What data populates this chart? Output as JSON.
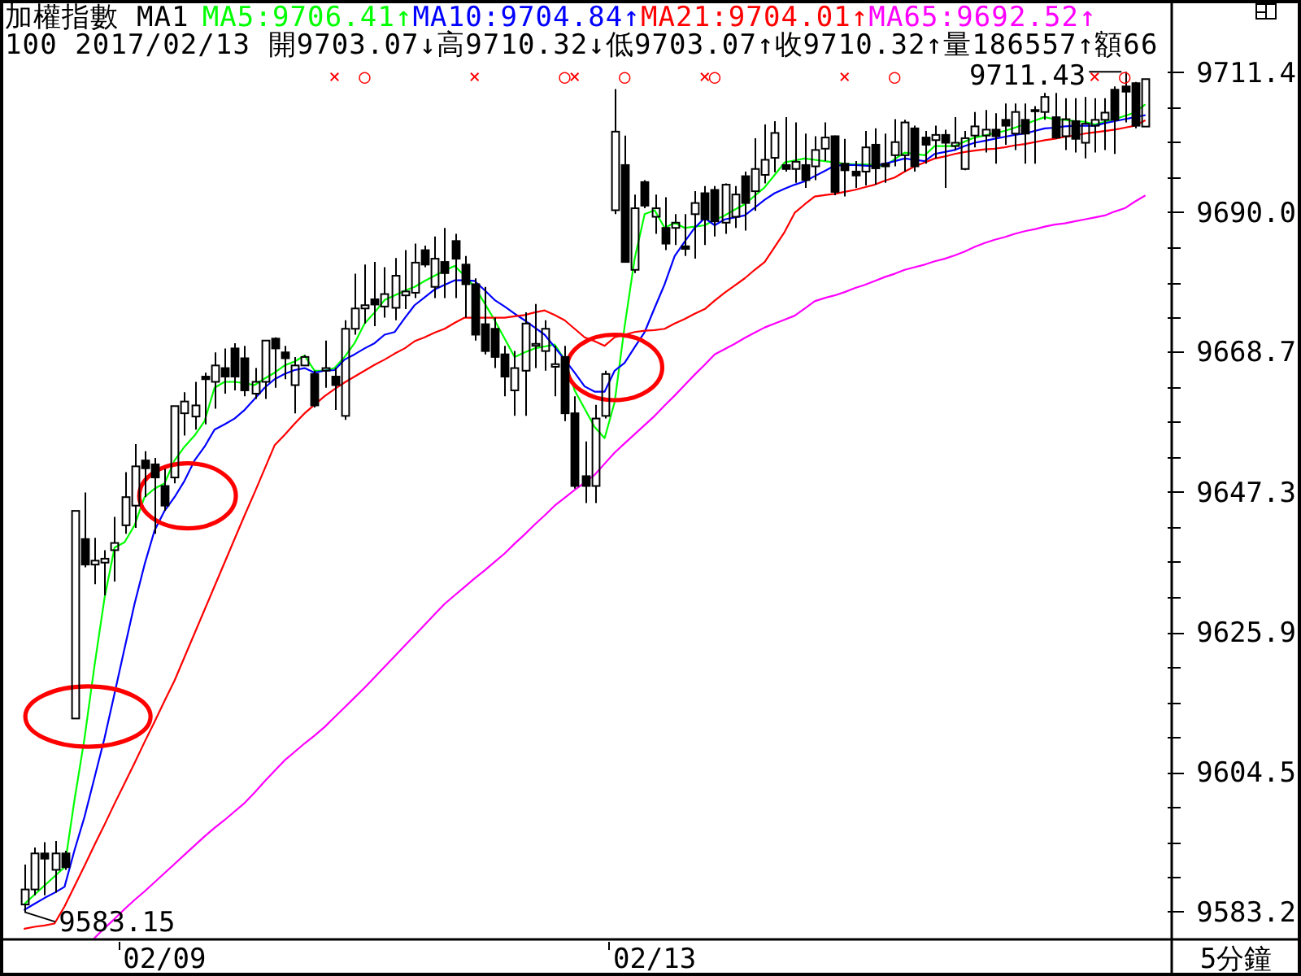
{
  "chart_data": {
    "type": "candlestick",
    "title": "加權指數 MA1",
    "subtitle": "100 2017/02/13 開9703.07↓高9710.32↓低9703.07↑收9710.32↑量186557↑額66",
    "xlabel": "5分鐘",
    "categories": [
      null,
      null,
      null,
      null,
      null,
      null,
      null,
      null,
      null,
      null,
      null,
      null,
      null,
      null,
      "02/09",
      null,
      null,
      null,
      null,
      null,
      null,
      null,
      null,
      null,
      null,
      null,
      null,
      null,
      null,
      null,
      null,
      null,
      null,
      null,
      null,
      null,
      null,
      null,
      null,
      null,
      null,
      null,
      null,
      null,
      null,
      null,
      null,
      null,
      null,
      null,
      null,
      null,
      null,
      null,
      null,
      null,
      null,
      null,
      null,
      null,
      null,
      null,
      null,
      "02/13",
      null,
      null,
      null,
      null,
      null,
      null,
      null,
      null,
      null,
      null,
      null,
      null,
      null,
      null,
      null,
      null,
      null,
      null,
      null,
      null,
      null,
      null,
      null,
      null,
      null,
      null,
      null,
      null,
      null,
      null,
      null,
      null,
      null,
      null,
      null,
      null,
      null,
      null,
      null,
      null,
      null,
      null,
      null,
      null,
      null,
      null,
      null,
      null,
      null
    ],
    "ohlc": [
      [
        9584.3,
        9590.4,
        9583.15,
        9586.6
      ],
      [
        9586.6,
        9593.0,
        9585.7,
        9592.1
      ],
      [
        9592.1,
        9593.8,
        9585.7,
        9591.3
      ],
      [
        9589.6,
        9594.0,
        9586.1,
        9592.1
      ],
      [
        9592.1,
        9592.5,
        9589.6,
        9590.0
      ],
      [
        9612.7,
        9644.4,
        9612.7,
        9644.4
      ],
      [
        9640.1,
        9647.2,
        9635.8,
        9636.2
      ],
      [
        9636.2,
        9640.3,
        9633.2,
        9636.8
      ],
      [
        9636.5,
        9638.4,
        9631.5,
        9637.1
      ],
      [
        9638.4,
        9643.5,
        9633.6,
        9639.5
      ],
      [
        9642.2,
        9650.3,
        9640.9,
        9646.5
      ],
      [
        9645.2,
        9654.6,
        9641.8,
        9651.2
      ],
      [
        9652.1,
        9653.5,
        9646.5,
        9650.9
      ],
      [
        9651.5,
        9652.5,
        9640.9,
        9649.5
      ],
      [
        9648.2,
        9650.8,
        9644.4,
        9645.2
      ],
      [
        9649.5,
        9660.4,
        9648.6,
        9660.4
      ],
      [
        9659.3,
        9662.5,
        9655.9,
        9661.1
      ],
      [
        9658.8,
        9664.1,
        9656.8,
        9660.5
      ],
      [
        9664.9,
        9665.5,
        9657.6,
        9664.5
      ],
      [
        9664.1,
        9668.6,
        9660.0,
        9666.6
      ],
      [
        9666.2,
        9669.2,
        9662.3,
        9664.9
      ],
      [
        9669.2,
        9670.0,
        9662.8,
        9664.9
      ],
      [
        9667.7,
        9669.6,
        9661.9,
        9662.8
      ],
      [
        9662.3,
        9666.2,
        9661.5,
        9664.1
      ],
      [
        9664.1,
        9670.4,
        9661.5,
        9670.4
      ],
      [
        9670.7,
        9670.9,
        9663.2,
        9669.2
      ],
      [
        9668.6,
        9669.6,
        9664.5,
        9667.7
      ],
      [
        9663.6,
        9667.9,
        9659.3,
        9666.6
      ],
      [
        9666.6,
        9668.2,
        9666.6,
        9667.9
      ],
      [
        9665.3,
        9665.8,
        9660.2,
        9660.5
      ],
      [
        9665.8,
        9670.4,
        9663.2,
        9666.2
      ],
      [
        9664.9,
        9666.2,
        9659.8,
        9663.6
      ],
      [
        9658.9,
        9673.5,
        9658.3,
        9672.2
      ],
      [
        9672.2,
        9680.6,
        9671.3,
        9675.3
      ],
      [
        9675.3,
        9682.0,
        9673.0,
        9675.8
      ],
      [
        9676.7,
        9682.4,
        9672.6,
        9675.9
      ],
      [
        9675.6,
        9681.6,
        9673.9,
        9677.5
      ],
      [
        9675.4,
        9683.0,
        9673.5,
        9680.3
      ],
      [
        9677.3,
        9684.2,
        9675.2,
        9677.9
      ],
      [
        9677.7,
        9685.2,
        9676.9,
        9682.3
      ],
      [
        9684.2,
        9684.9,
        9681.6,
        9682.0
      ],
      [
        9678.6,
        9686.3,
        9676.9,
        9682.9
      ],
      [
        9682.4,
        9687.6,
        9676.9,
        9680.7
      ],
      [
        9685.6,
        9686.7,
        9676.9,
        9682.9
      ],
      [
        9682.0,
        9683.3,
        9673.9,
        9679.0
      ],
      [
        9679.0,
        9679.9,
        9670.4,
        9671.3
      ],
      [
        9672.9,
        9678.6,
        9668.3,
        9668.8
      ],
      [
        9672.2,
        9673.9,
        9666.2,
        9667.9
      ],
      [
        9668.3,
        9669.6,
        9661.9,
        9664.9
      ],
      [
        9662.8,
        9668.8,
        9658.9,
        9666.2
      ],
      [
        9665.8,
        9674.7,
        9658.9,
        9673.0
      ],
      [
        9669.6,
        9676.0,
        9666.2,
        9669.9
      ],
      [
        9668.8,
        9673.5,
        9665.8,
        9672.2
      ],
      [
        9666.4,
        9669.6,
        9661.9,
        9666.8
      ],
      [
        9667.9,
        9669.6,
        9658.1,
        9659.3
      ],
      [
        9659.3,
        9661.9,
        9647.8,
        9648.2
      ],
      [
        9649.7,
        9655.0,
        9645.6,
        9648.2
      ],
      [
        9648.2,
        9660.6,
        9645.6,
        9658.5
      ],
      [
        9658.9,
        9665.8,
        9658.5,
        9665.3
      ],
      [
        9690.3,
        9708.8,
        9689.7,
        9702.3
      ],
      [
        9697.2,
        9701.7,
        9682.3,
        9682.4
      ],
      [
        9681.2,
        9692.7,
        9680.7,
        9690.6
      ],
      [
        9694.6,
        9694.9,
        9690.6,
        9691.0
      ],
      [
        9689.3,
        9692.7,
        9686.7,
        9690.6
      ],
      [
        9687.6,
        9692.3,
        9684.2,
        9685.2
      ],
      [
        9687.6,
        9689.7,
        9685.0,
        9688.4
      ],
      [
        9684.8,
        9689.7,
        9683.3,
        9684.4
      ],
      [
        9689.7,
        9693.2,
        9682.9,
        9691.4
      ],
      [
        9692.9,
        9694.0,
        9685.0,
        9688.9
      ],
      [
        9693.4,
        9694.0,
        9686.3,
        9688.6
      ],
      [
        9688.4,
        9694.4,
        9686.7,
        9694.2
      ],
      [
        9689.3,
        9694.0,
        9687.6,
        9692.7
      ],
      [
        9695.5,
        9696.2,
        9687.2,
        9691.4
      ],
      [
        9693.2,
        9701.3,
        9690.2,
        9696.6
      ],
      [
        9695.7,
        9703.4,
        9694.4,
        9698.0
      ],
      [
        9698.3,
        9703.9,
        9696.1,
        9702.1
      ],
      [
        9697.2,
        9704.5,
        9696.2,
        9696.6
      ],
      [
        9696.6,
        9703.7,
        9694.5,
        9697.7
      ],
      [
        9697.2,
        9702.0,
        9693.7,
        9694.9
      ],
      [
        9697.0,
        9701.6,
        9694.9,
        9699.5
      ],
      [
        9699.7,
        9703.7,
        9697.8,
        9701.4
      ],
      [
        9701.6,
        9701.7,
        9692.6,
        9693.1
      ],
      [
        9697.4,
        9701.2,
        9692.4,
        9696.4
      ],
      [
        9696.2,
        9697.8,
        9693.7,
        9695.6
      ],
      [
        9696.2,
        9702.4,
        9694.1,
        9699.9
      ],
      [
        9700.3,
        9702.8,
        9694.2,
        9696.7
      ],
      [
        9697.4,
        9702.0,
        9694.5,
        9697.0
      ],
      [
        9698.7,
        9704.2,
        9697.0,
        9700.7
      ],
      [
        9698.7,
        9704.1,
        9696.2,
        9703.7
      ],
      [
        9702.8,
        9703.2,
        9696.2,
        9697.0
      ],
      [
        9701.4,
        9702.4,
        9697.4,
        9700.3
      ],
      [
        9701.0,
        9703.2,
        9698.2,
        9701.8
      ],
      [
        9701.8,
        9702.6,
        9693.7,
        9700.6
      ],
      [
        9700.1,
        9704.5,
        9699.5,
        9700.6
      ],
      [
        9696.6,
        9702.4,
        9696.4,
        9701.3
      ],
      [
        9701.7,
        9705.3,
        9699.9,
        9703.1
      ],
      [
        9701.7,
        9705.6,
        9699.1,
        9702.6
      ],
      [
        9702.6,
        9705.1,
        9697.4,
        9701.6
      ],
      [
        9704.1,
        9706.6,
        9700.3,
        9703.2
      ],
      [
        9702.0,
        9706.6,
        9699.5,
        9705.3
      ],
      [
        9704.1,
        9706.6,
        9697.4,
        9702.0
      ],
      [
        9705.5,
        9706.2,
        9697.4,
        9705.6
      ],
      [
        9705.3,
        9708.2,
        9704.1,
        9707.6
      ],
      [
        9704.5,
        9708.2,
        9701.2,
        9701.4
      ],
      [
        9701.6,
        9707.4,
        9699.5,
        9704.2
      ],
      [
        9703.9,
        9707.4,
        9699.1,
        9701.2
      ],
      [
        9700.6,
        9707.6,
        9698.2,
        9703.5
      ],
      [
        9703.2,
        9707.4,
        9699.1,
        9704.1
      ],
      [
        9704.1,
        9707.4,
        9699.5,
        9705.2
      ],
      [
        9708.7,
        9709.2,
        9698.9,
        9704.1
      ],
      [
        9709.2,
        9711.43,
        9703.7,
        9708.4
      ],
      [
        9709.7,
        9709.9,
        9702.8,
        9703.2
      ],
      [
        9703.07,
        9710.32,
        9703.07,
        9710.32
      ]
    ],
    "series": [
      {
        "name": "MA5:9706.41↑",
        "type": "line",
        "color": "#00ff00",
        "values": [
          9584.4,
          9585.8,
          9587.2,
          9588.6,
          9590.0,
          9600.3,
          9609.7,
          9620.8,
          9631.1,
          9638.8,
          9639.6,
          9642.2,
          9646.5,
          9647.8,
          9648.6,
          9652.1,
          9654.2,
          9655.9,
          9658.1,
          9663.2,
          9664.1,
          9664.1,
          9663.9,
          9663.6,
          9664.6,
          9665.5,
          9666.6,
          9667.2,
          9668.1,
          9665.8,
          9665.8,
          9666.2,
          9667.9,
          9670.0,
          9673.0,
          9674.7,
          9676.6,
          9677.3,
          9678.0,
          9678.6,
          9679.5,
          9680.3,
          9681.1,
          9681.8,
          9680.3,
          9678.6,
          9676.1,
          9673.5,
          9670.7,
          9667.9,
          9668.6,
          9669.2,
          9669.5,
          9669.8,
          9667.5,
          9662.8,
          9660.0,
          9657.2,
          9655.5,
          9661.0,
          9672.6,
          9682.9,
          9689.7,
          9690.3,
          9687.6,
          9688.4,
          9687.6,
          9687.8,
          9688.0,
          9688.8,
          9689.5,
          9690.4,
          9691.2,
          9692.5,
          9693.8,
          9695.7,
          9697.6,
          9697.9,
          9698.2,
          9698.0,
          9697.8,
          9697.6,
          9697.4,
          9697.3,
          9697.3,
          9697.2,
          9697.0,
          9698.1,
          9699.1,
          9698.9,
          9698.7,
          9700.1,
          9700.1,
          9700.1,
          9700.8,
          9701.4,
          9701.7,
          9702.1,
          9702.4,
          9702.9,
          9703.4,
          9704.0,
          9704.5,
          9704.2,
          9704.1,
          9703.9,
          9703.8,
          9703.4,
          9703.8,
          9704.2,
          9704.7,
          9705.2,
          9706.4
        ]
      },
      {
        "name": "MA10:9704.84↑",
        "type": "line",
        "color": "#0000ff",
        "values": [
          9583.5,
          9584.4,
          9585.3,
          9586.1,
          9587.0,
          9592.6,
          9597.7,
          9603.7,
          9609.7,
          9616.5,
          9623.4,
          9630.2,
          9636.2,
          9641.4,
          9644.4,
          9646.5,
          9649.0,
          9652.1,
          9654.2,
          9656.8,
          9657.6,
          9658.5,
          9659.8,
          9661.5,
          9663.2,
          9664.5,
          9665.3,
          9665.9,
          9666.2,
          9665.5,
          9665.8,
          9665.9,
          9667.5,
          9668.3,
          9669.2,
          9670.0,
          9671.3,
          9671.7,
          9673.8,
          9675.8,
          9677.0,
          9678.2,
          9678.9,
          9679.6,
          9679.6,
          9679.5,
          9678.1,
          9676.6,
          9675.6,
          9674.5,
          9673.5,
          9672.4,
          9671.3,
          9669.4,
          9667.5,
          9665.5,
          9663.4,
          9662.6,
          9662.6,
          9665.8,
          9667.0,
          9669.4,
          9671.7,
          9675.4,
          9679.0,
          9683.3,
          9685.5,
          9687.6,
          9689.1,
          9688.0,
          9688.9,
          9689.2,
          9689.5,
          9690.7,
          9691.9,
          9692.9,
          9693.6,
          9694.2,
          9694.7,
          9695.5,
          9696.3,
          9697.1,
          9697.2,
          9697.2,
          9697.1,
          9697.0,
          9697.4,
          9697.8,
          9698.2,
          9698.0,
          9697.8,
          9698.9,
          9699.2,
          9699.5,
          9700.1,
          9700.6,
          9700.9,
          9701.2,
          9701.5,
          9701.8,
          9702.0,
          9702.4,
          9702.8,
          9702.9,
          9703.1,
          9703.2,
          9703.2,
          9703.2,
          9703.6,
          9703.9,
          9704.2,
          9704.5,
          9704.8
        ]
      },
      {
        "name": "MA21:9704.01↑",
        "type": "line",
        "color": "#ff0000",
        "values": [
          9580.6,
          9580.9,
          9581.1,
          9581.4,
          9584.0,
          9587.1,
          9590.2,
          9593.4,
          9596.5,
          9599.7,
          9602.8,
          9605.9,
          9609.1,
          9612.2,
          9615.4,
          9618.5,
          9622.1,
          9625.7,
          9629.3,
          9632.9,
          9636.5,
          9640.1,
          9643.7,
          9647.2,
          9650.8,
          9654.4,
          9656.0,
          9657.7,
          9659.3,
          9660.6,
          9661.9,
          9663.0,
          9664.0,
          9664.9,
          9665.8,
          9666.7,
          9667.5,
          9668.4,
          9669.2,
          9670.3,
          9670.9,
          9671.6,
          9672.2,
          9673.1,
          9673.9,
          9673.9,
          9673.9,
          9673.9,
          9673.9,
          9674.1,
          9674.3,
          9674.7,
          9675.0,
          9674.3,
          9673.5,
          9672.2,
          9670.9,
          9670.3,
          9669.6,
          9670.9,
          9671.3,
          9671.7,
          9671.9,
          9672.0,
          9672.2,
          9673.0,
          9673.7,
          9674.5,
          9675.2,
          9676.5,
          9677.7,
          9678.8,
          9679.9,
          9681.2,
          9682.4,
          9684.7,
          9687.0,
          9689.9,
          9691.2,
          9692.4,
          9692.6,
          9692.8,
          9693.1,
          9693.4,
          9693.8,
          9694.2,
          9694.8,
          9695.3,
          9696.2,
          9697.0,
          9697.6,
          9698.2,
          9698.5,
          9698.9,
          9699.2,
          9699.4,
          9699.6,
          9699.7,
          9699.9,
          9700.2,
          9700.4,
          9700.7,
          9701.0,
          9701.2,
          9701.5,
          9701.7,
          9702.0,
          9702.2,
          9702.4,
          9702.6,
          9702.9,
          9703.2,
          9704.0
        ]
      },
      {
        "name": "MA65:9692.52↑",
        "type": "line",
        "color": "#ff00ff",
        "values": [
          null,
          null,
          null,
          null,
          null,
          null,
          null,
          9579.2,
          9580.7,
          9582.1,
          9583.6,
          9585.0,
          9586.3,
          9587.7,
          9589.1,
          9590.5,
          9591.9,
          9593.3,
          9594.7,
          9596.0,
          9597.2,
          9598.5,
          9599.8,
          9601.4,
          9603.1,
          9604.7,
          9606.3,
          9607.6,
          9608.9,
          9610.1,
          9611.4,
          9612.9,
          9614.4,
          9615.9,
          9617.4,
          9619.0,
          9620.6,
          9622.2,
          9623.8,
          9625.4,
          9627.0,
          9628.6,
          9630.2,
          9631.5,
          9632.8,
          9634.1,
          9635.3,
          9636.6,
          9637.9,
          9639.4,
          9640.8,
          9642.3,
          9643.7,
          9645.2,
          9646.4,
          9647.6,
          9648.7,
          9649.9,
          9651.6,
          9653.3,
          9654.7,
          9656.1,
          9657.5,
          9658.9,
          9660.5,
          9662.0,
          9663.6,
          9665.2,
          9666.7,
          9668.3,
          9669.1,
          9669.9,
          9670.8,
          9671.6,
          9672.4,
          9673.0,
          9673.6,
          9674.2,
          9675.3,
          9676.4,
          9676.9,
          9677.3,
          9677.8,
          9678.4,
          9678.9,
          9679.5,
          9680.1,
          9680.6,
          9681.2,
          9681.6,
          9682.0,
          9682.5,
          9682.9,
          9683.4,
          9684.0,
          9684.7,
          9685.3,
          9685.8,
          9686.2,
          9686.7,
          9687.1,
          9687.4,
          9687.8,
          9688.1,
          9688.3,
          9688.6,
          9688.9,
          9689.2,
          9689.5,
          9690.1,
          9690.6,
          9691.6,
          9692.5
        ]
      }
    ],
    "ylim": [
      9579.1,
      9721.9
    ],
    "yticks": [
      9583.2,
      {
        "value": 9588.5,
        "label": null
      },
      {
        "value": 9593.8,
        "label": null
      },
      {
        "value": 9599.2,
        "label": null
      },
      9604.5,
      {
        "value": 9609.9,
        "label": null
      },
      {
        "value": 9615.2,
        "label": null
      },
      {
        "value": 9620.6,
        "label": null
      },
      9625.9,
      {
        "value": 9631.2,
        "label": null
      },
      {
        "value": 9636.6,
        "label": null
      },
      {
        "value": 9641.9,
        "label": null
      },
      9647.3,
      {
        "value": 9652.6,
        "label": null
      },
      {
        "value": 9658.0,
        "label": null
      },
      {
        "value": 9663.3,
        "label": null
      },
      9668.7,
      {
        "value": 9674.0,
        "label": null
      },
      {
        "value": 9679.3,
        "label": null
      },
      {
        "value": 9684.7,
        "label": null
      },
      {
        "value": 9690.0,
        "label": "9690.0"
      },
      {
        "value": 9695.4,
        "label": null
      },
      {
        "value": 9700.7,
        "label": null
      },
      {
        "value": 9706.1,
        "label": null
      },
      9711.4
    ],
    "annotations": [
      {
        "text": "9583.15",
        "y": 9583.15
      },
      "9711.43",
      "×",
      "○",
      "×",
      "○",
      "×",
      "○",
      "×",
      "○",
      "×",
      "○",
      "×",
      "○"
    ],
    "legend": "top"
  }
}
